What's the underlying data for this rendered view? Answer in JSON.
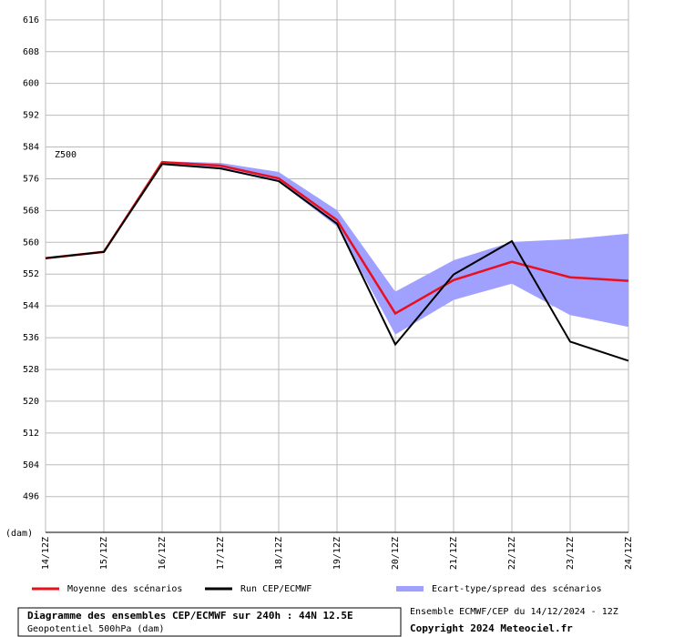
{
  "chart_data": {
    "type": "ensemble",
    "annotation": "Z500",
    "y_label": "(dam)",
    "categories": [
      "14/12Z",
      "15/12Z",
      "16/12Z",
      "17/12Z",
      "18/12Z",
      "19/12Z",
      "20/12Z",
      "21/12Z",
      "22/12Z",
      "23/12Z",
      "24/12Z"
    ],
    "ylim": [
      487,
      621
    ],
    "yticks": [
      496,
      504,
      512,
      520,
      528,
      536,
      544,
      552,
      560,
      568,
      576,
      584,
      592,
      600,
      608,
      616
    ],
    "grid": true,
    "series": [
      {
        "name": "Ecart-type/spread des scénarios",
        "color": "#a0a0ff",
        "upper": [
          null,
          null,
          580.4,
          580,
          577.7,
          568.1,
          547.6,
          555.5,
          560.1,
          560.8,
          562.2
        ],
        "lower": [
          null,
          null,
          579.9,
          578.6,
          575.2,
          564,
          536.8,
          545.5,
          549.6,
          541.7,
          538.7
        ]
      },
      {
        "name": "Moyenne des scénarios",
        "color": "#e8101c",
        "values": [
          556,
          557.6,
          580.2,
          579.3,
          576.1,
          565.6,
          542.1,
          550.5,
          555.1,
          551.2,
          550.3
        ]
      },
      {
        "name": "Run CEP/ECMWF",
        "color": "#000000",
        "values": [
          556,
          557.6,
          579.7,
          578.6,
          575.4,
          564.7,
          534.3,
          551.9,
          560.3,
          535,
          530.2
        ]
      }
    ],
    "footer": {
      "title": "Diagramme des ensembles CEP/ECMWF sur 240h : 44N 12.5E",
      "subtitle": "Geopotentiel 500hPa (dam)",
      "run": "Ensemble ECMWF/CEP du 14/12/2024 - 12Z",
      "copyright": "Copyright 2024 Meteociel.fr"
    }
  }
}
